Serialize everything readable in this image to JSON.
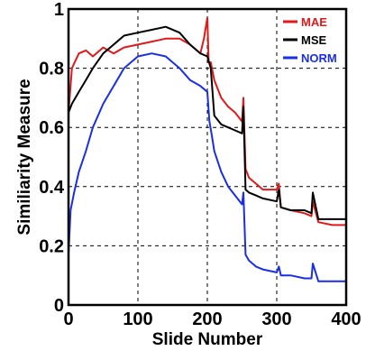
{
  "chart_data": {
    "type": "line",
    "title": "",
    "xlabel": "Slide Number",
    "ylabel": "Similiarity Measure",
    "xlim": [
      0,
      400
    ],
    "ylim": [
      0,
      1
    ],
    "xticks": [
      "0",
      "100",
      "200",
      "300",
      "400"
    ],
    "yticks": [
      "0",
      "0.2",
      "0.4",
      "0.6",
      "0.8",
      "1"
    ],
    "grid": true,
    "legend_position": "top-right",
    "series": [
      {
        "name": "MAE",
        "color": "#e01a1a",
        "x": [
          0,
          5,
          15,
          25,
          35,
          50,
          65,
          80,
          100,
          120,
          140,
          160,
          175,
          190,
          195,
          200,
          202,
          205,
          210,
          220,
          230,
          240,
          250,
          252,
          255,
          260,
          270,
          280,
          290,
          300,
          303,
          306,
          320,
          340,
          350,
          352,
          360,
          380,
          400
        ],
        "y": [
          0.65,
          0.8,
          0.85,
          0.86,
          0.84,
          0.87,
          0.85,
          0.87,
          0.88,
          0.89,
          0.9,
          0.9,
          0.88,
          0.85,
          0.9,
          0.97,
          0.82,
          0.82,
          0.76,
          0.7,
          0.67,
          0.65,
          0.62,
          0.7,
          0.46,
          0.43,
          0.41,
          0.39,
          0.39,
          0.39,
          0.41,
          0.33,
          0.32,
          0.31,
          0.3,
          0.35,
          0.28,
          0.27,
          0.27
        ]
      },
      {
        "name": "MSE",
        "color": "#000000",
        "x": [
          0,
          5,
          15,
          25,
          35,
          50,
          65,
          80,
          100,
          120,
          140,
          160,
          175,
          190,
          200,
          205,
          210,
          220,
          230,
          240,
          250,
          252,
          255,
          260,
          270,
          280,
          300,
          303,
          306,
          320,
          340,
          350,
          352,
          360,
          380,
          400
        ],
        "y": [
          0.65,
          0.68,
          0.72,
          0.76,
          0.8,
          0.85,
          0.88,
          0.91,
          0.92,
          0.93,
          0.94,
          0.92,
          0.88,
          0.85,
          0.84,
          0.8,
          0.64,
          0.61,
          0.6,
          0.59,
          0.58,
          0.67,
          0.39,
          0.38,
          0.37,
          0.36,
          0.35,
          0.39,
          0.33,
          0.32,
          0.32,
          0.31,
          0.38,
          0.29,
          0.29,
          0.29
        ]
      },
      {
        "name": "NORM",
        "color": "#1a2ee6",
        "x": [
          0,
          3,
          8,
          15,
          25,
          35,
          50,
          65,
          80,
          100,
          120,
          140,
          160,
          175,
          190,
          200,
          203,
          206,
          210,
          220,
          230,
          240,
          250,
          252,
          255,
          260,
          270,
          280,
          300,
          303,
          306,
          320,
          340,
          350,
          352,
          360,
          380,
          400
        ],
        "y": [
          0.17,
          0.32,
          0.38,
          0.45,
          0.52,
          0.6,
          0.68,
          0.74,
          0.8,
          0.84,
          0.85,
          0.84,
          0.8,
          0.76,
          0.74,
          0.72,
          0.62,
          0.58,
          0.52,
          0.45,
          0.4,
          0.37,
          0.34,
          0.38,
          0.17,
          0.15,
          0.13,
          0.12,
          0.11,
          0.13,
          0.1,
          0.1,
          0.09,
          0.09,
          0.14,
          0.08,
          0.08,
          0.08
        ]
      }
    ]
  }
}
